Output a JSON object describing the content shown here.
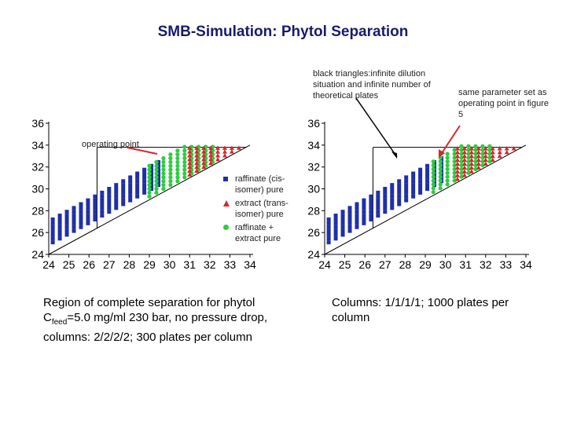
{
  "title": "SMB-Simulation: Phytol Separation",
  "annotation_left": "black triangles:infinite dilution situation and infinite number of theoretical plates",
  "annotation_right": "same parameter set as operating point in figure 5",
  "operating_point_label": "operating point",
  "legend": {
    "raffinate": "raffinate (cis-isomer) pure",
    "extract": "extract (trans-isomer) pure",
    "both": "raffinate + extract pure"
  },
  "caption_left": {
    "pre": "Region of complete separation for phytol C",
    "sub": "feed",
    "post": "=5.0 mg/ml 230 bar, no pressure drop, columns: 2/2/2/2; 300 plates per column"
  },
  "caption_right": "Columns: 1/1/1/1; 1000 plates per column",
  "colors": {
    "raffinate": "#1f2fa8",
    "extract": "#d8262a",
    "both": "#2ecc40",
    "axis": "#000000"
  },
  "chart_data": [
    {
      "type": "scatter",
      "name": "left-plot",
      "x_ticks": [
        24,
        25,
        26,
        27,
        28,
        29,
        30,
        31,
        32,
        33,
        34
      ],
      "y_ticks": [
        24,
        26,
        28,
        30,
        32,
        34,
        36
      ],
      "xlim": [
        24,
        34
      ],
      "ylim": [
        24,
        36
      ],
      "diagonal": [
        [
          24,
          24
        ],
        [
          34,
          34
        ]
      ],
      "operating_point": [
        26.4,
        33.8
      ],
      "region": {
        "rows": [
          [
            26.2,
            33.8
          ],
          [
            34.2,
            33.8
          ]
        ],
        "note": "pure regions sampled on grid above diagonal"
      },
      "series": [
        {
          "name": "raffinate (cis-isomer) pure",
          "marker": "square",
          "x_range": [
            24.2,
            29.6
          ],
          "offset_min": 0.9
        },
        {
          "name": "raffinate + extract pure",
          "marker": "circle",
          "x_range": [
            29.0,
            32.4
          ],
          "offset_min": 0.3
        },
        {
          "name": "extract (trans-isomer) pure",
          "marker": "triangle",
          "x_range": [
            31.0,
            33.8
          ],
          "offset_min": 0.3
        }
      ]
    },
    {
      "type": "scatter",
      "name": "right-plot",
      "x_ticks": [
        24,
        25,
        26,
        27,
        28,
        29,
        30,
        31,
        32,
        33,
        34
      ],
      "y_ticks": [
        24,
        26,
        28,
        30,
        32,
        34,
        36
      ],
      "xlim": [
        24,
        34
      ],
      "ylim": [
        24,
        36
      ],
      "diagonal": [
        [
          24,
          24
        ],
        [
          34,
          34
        ]
      ],
      "operating_point": [
        26.4,
        33.8
      ],
      "series": [
        {
          "name": "raffinate (cis-isomer) pure",
          "marker": "square",
          "x_range": [
            24.2,
            30.0
          ],
          "offset_min": 0.9
        },
        {
          "name": "raffinate + extract pure",
          "marker": "circle",
          "x_range": [
            29.4,
            32.2
          ],
          "offset_min": 0.3
        },
        {
          "name": "extract (trans-isomer) pure",
          "marker": "triangle",
          "x_range": [
            30.6,
            33.8
          ],
          "offset_min": 0.3
        }
      ]
    }
  ]
}
